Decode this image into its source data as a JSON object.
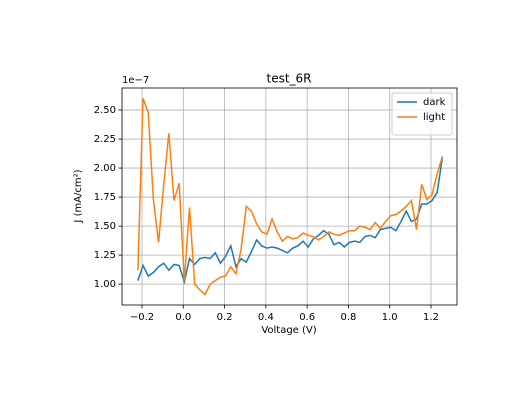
{
  "chart_data": {
    "type": "line",
    "title": "test_6R",
    "xlabel": "Voltage (V)",
    "ylabel": "J (mA/cm²)",
    "y_offset_label": "1e−7",
    "x": [
      -0.22,
      -0.195,
      -0.17,
      -0.145,
      -0.12,
      -0.095,
      -0.07,
      -0.045,
      -0.02,
      0.005,
      0.03,
      0.055,
      0.08,
      0.105,
      0.13,
      0.155,
      0.18,
      0.205,
      0.23,
      0.255,
      0.28,
      0.305,
      0.33,
      0.355,
      0.38,
      0.405,
      0.43,
      0.455,
      0.48,
      0.505,
      0.53,
      0.555,
      0.58,
      0.605,
      0.63,
      0.655,
      0.68,
      0.705,
      0.73,
      0.755,
      0.78,
      0.805,
      0.83,
      0.855,
      0.88,
      0.905,
      0.93,
      0.955,
      0.98,
      1.005,
      1.03,
      1.055,
      1.08,
      1.105,
      1.13,
      1.155,
      1.18,
      1.205,
      1.23,
      1.255
    ],
    "series": [
      {
        "name": "dark",
        "color": "#1f77b4",
        "values": [
          1.03,
          1.16,
          1.07,
          1.1,
          1.15,
          1.18,
          1.12,
          1.17,
          1.16,
          1.02,
          1.22,
          1.17,
          1.22,
          1.23,
          1.22,
          1.27,
          1.18,
          1.24,
          1.33,
          1.15,
          1.22,
          1.19,
          1.28,
          1.38,
          1.33,
          1.31,
          1.32,
          1.31,
          1.29,
          1.27,
          1.31,
          1.33,
          1.37,
          1.32,
          1.39,
          1.42,
          1.46,
          1.43,
          1.34,
          1.36,
          1.32,
          1.36,
          1.37,
          1.36,
          1.41,
          1.42,
          1.4,
          1.47,
          1.48,
          1.49,
          1.46,
          1.54,
          1.63,
          1.54,
          1.56,
          1.69,
          1.69,
          1.72,
          1.79,
          2.09
        ]
      },
      {
        "name": "light",
        "color": "#ff7f0e",
        "values": [
          1.12,
          2.6,
          2.48,
          1.73,
          1.36,
          1.85,
          2.3,
          1.72,
          1.87,
          1.03,
          1.66,
          1.0,
          0.95,
          0.91,
          1.0,
          1.03,
          1.06,
          1.07,
          1.15,
          1.09,
          1.3,
          1.67,
          1.63,
          1.52,
          1.45,
          1.43,
          1.56,
          1.45,
          1.37,
          1.41,
          1.39,
          1.4,
          1.44,
          1.42,
          1.41,
          1.38,
          1.41,
          1.45,
          1.43,
          1.42,
          1.44,
          1.46,
          1.46,
          1.5,
          1.49,
          1.47,
          1.53,
          1.48,
          1.54,
          1.59,
          1.6,
          1.63,
          1.67,
          1.72,
          1.47,
          1.86,
          1.73,
          1.77,
          1.95,
          2.1
        ]
      }
    ],
    "xlim": [
      -0.297,
      1.326
    ],
    "xticks": [
      {
        "value": -0.2,
        "label": "−0.2"
      },
      {
        "value": 0,
        "label": "0.0"
      },
      0.2,
      0.4,
      0.6,
      0.8,
      {
        "value": 1,
        "label": "1.0"
      },
      1.2
    ],
    "ylim": [
      0.82,
      2.69
    ],
    "yticks": [
      {
        "value": 1,
        "label": "1.00"
      },
      {
        "value": 1.25,
        "label": "1.25"
      },
      {
        "value": 1.5,
        "label": "1.50"
      },
      {
        "value": 1.75,
        "label": "1.75"
      },
      {
        "value": 2,
        "label": "2.00"
      },
      {
        "value": 2.25,
        "label": "2.25"
      },
      {
        "value": 2.5,
        "label": "2.50"
      }
    ],
    "grid": true,
    "legend": "upper right"
  }
}
